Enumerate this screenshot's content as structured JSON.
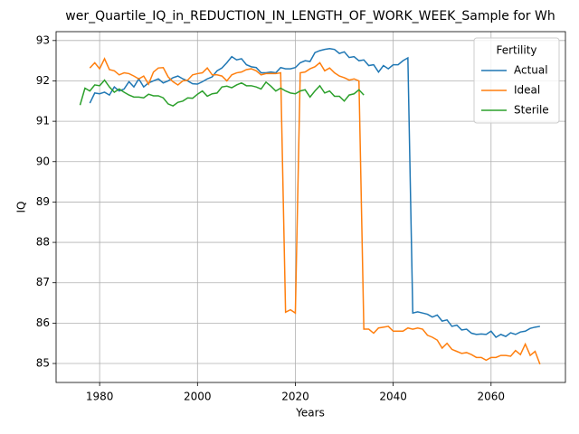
{
  "chart_data": {
    "type": "line",
    "title": "wer_Quartile_IQ_in_REDUCTION_IN_LENGTH_OF_WORK_WEEK_Sample for Wh",
    "x_label": "Years",
    "y_label": "IQ",
    "x": [
      1976,
      1977,
      1978,
      1979,
      1980,
      1981,
      1982,
      1983,
      1984,
      1985,
      1986,
      1987,
      1988,
      1989,
      1990,
      1991,
      1992,
      1993,
      1994,
      1995,
      1996,
      1997,
      1998,
      1999,
      2000,
      2001,
      2002,
      2003,
      2004,
      2005,
      2006,
      2007,
      2008,
      2009,
      2010,
      2011,
      2012,
      2013,
      2014,
      2015,
      2016,
      2017,
      2018,
      2019,
      2020,
      2021,
      2022,
      2023,
      2024,
      2025,
      2026,
      2027,
      2028,
      2029,
      2030,
      2031,
      2032,
      2033,
      2034,
      2035,
      2036,
      2037,
      2038,
      2039,
      2040,
      2041,
      2042,
      2043,
      2044,
      2045,
      2046,
      2047,
      2048,
      2049,
      2050,
      2051,
      2052,
      2053,
      2054,
      2055,
      2056,
      2057,
      2058,
      2059,
      2060,
      2061,
      2062,
      2063,
      2064,
      2065,
      2066,
      2067,
      2068,
      2069,
      2070
    ],
    "series": [
      {
        "name": "Actual",
        "color": "#1f77b4",
        "values": [
          null,
          null,
          91.45,
          91.7,
          91.68,
          91.72,
          91.65,
          91.85,
          91.75,
          91.8,
          91.98,
          91.85,
          92.05,
          91.85,
          91.95,
          92.0,
          92.05,
          91.95,
          92.0,
          92.08,
          92.12,
          92.05,
          92.0,
          91.93,
          91.92,
          91.98,
          92.05,
          92.1,
          92.25,
          92.32,
          92.45,
          92.6,
          92.52,
          92.55,
          92.4,
          92.35,
          92.33,
          92.2,
          92.2,
          92.22,
          92.2,
          92.33,
          92.3,
          92.3,
          92.33,
          92.45,
          92.5,
          92.48,
          92.7,
          92.75,
          92.78,
          92.8,
          92.78,
          92.68,
          92.72,
          92.58,
          92.6,
          92.5,
          92.52,
          92.38,
          92.4,
          92.22,
          92.38,
          92.3,
          92.4,
          92.4,
          92.5,
          92.57,
          86.25,
          86.28,
          86.25,
          86.22,
          86.15,
          86.2,
          86.05,
          86.08,
          85.92,
          85.95,
          85.83,
          85.85,
          85.75,
          85.72,
          85.73,
          85.72,
          85.8,
          85.65,
          85.72,
          85.67,
          85.76,
          85.72,
          85.78,
          85.8,
          85.87,
          85.9,
          85.92
        ]
      },
      {
        "name": "Ideal",
        "color": "#ff7f0e",
        "values": [
          null,
          null,
          92.32,
          92.45,
          92.3,
          92.55,
          92.28,
          92.25,
          92.15,
          92.2,
          92.18,
          92.12,
          92.05,
          92.12,
          91.92,
          92.22,
          92.32,
          92.33,
          92.1,
          91.98,
          91.9,
          92.0,
          92.02,
          92.15,
          92.18,
          92.2,
          92.32,
          92.15,
          92.15,
          92.12,
          92.0,
          92.15,
          92.2,
          92.22,
          92.28,
          92.3,
          92.25,
          92.15,
          92.18,
          92.18,
          92.18,
          92.2,
          86.27,
          86.33,
          86.25,
          92.2,
          92.22,
          92.3,
          92.35,
          92.45,
          92.25,
          92.32,
          92.2,
          92.12,
          92.08,
          92.02,
          92.05,
          92.0,
          85.85,
          85.85,
          85.75,
          85.88,
          85.9,
          85.92,
          85.8,
          85.8,
          85.8,
          85.88,
          85.85,
          85.88,
          85.85,
          85.7,
          85.65,
          85.58,
          85.38,
          85.5,
          85.35,
          85.3,
          85.25,
          85.27,
          85.22,
          85.15,
          85.15,
          85.08,
          85.15,
          85.15,
          85.2,
          85.2,
          85.18,
          85.32,
          85.22,
          85.48,
          85.2,
          85.3,
          84.98
        ]
      },
      {
        "name": "Sterile",
        "color": "#2ca02c",
        "values": [
          91.4,
          91.82,
          91.75,
          91.9,
          91.88,
          92.02,
          91.85,
          91.72,
          91.8,
          91.72,
          91.65,
          91.6,
          91.6,
          91.58,
          91.67,
          91.63,
          91.63,
          91.58,
          91.43,
          91.38,
          91.47,
          91.5,
          91.58,
          91.57,
          91.67,
          91.75,
          91.62,
          91.68,
          91.7,
          91.85,
          91.87,
          91.83,
          91.9,
          91.95,
          91.88,
          91.88,
          91.85,
          91.8,
          91.97,
          91.87,
          91.75,
          91.82,
          91.75,
          91.7,
          91.68,
          91.75,
          91.78,
          91.6,
          91.75,
          91.88,
          91.7,
          91.75,
          91.62,
          91.62,
          91.5,
          91.65,
          91.68,
          91.78,
          91.65,
          null,
          null,
          null,
          null,
          null,
          null,
          null,
          null,
          null,
          null,
          null,
          null,
          null,
          null,
          null,
          null,
          null,
          null,
          null,
          null,
          null,
          null,
          null,
          null,
          null,
          null,
          null,
          null,
          null,
          null,
          null,
          null,
          null,
          null,
          null,
          null
        ]
      }
    ],
    "xlim": [
      1971.1,
      2075.2
    ],
    "ylim": [
      84.53,
      93.22
    ],
    "xticks": [
      1980,
      2000,
      2020,
      2040,
      2060
    ],
    "yticks": [
      85,
      86,
      87,
      88,
      89,
      90,
      91,
      92,
      93
    ],
    "grid": true,
    "legend_title": "Fertility",
    "legend_position": "upper right"
  }
}
